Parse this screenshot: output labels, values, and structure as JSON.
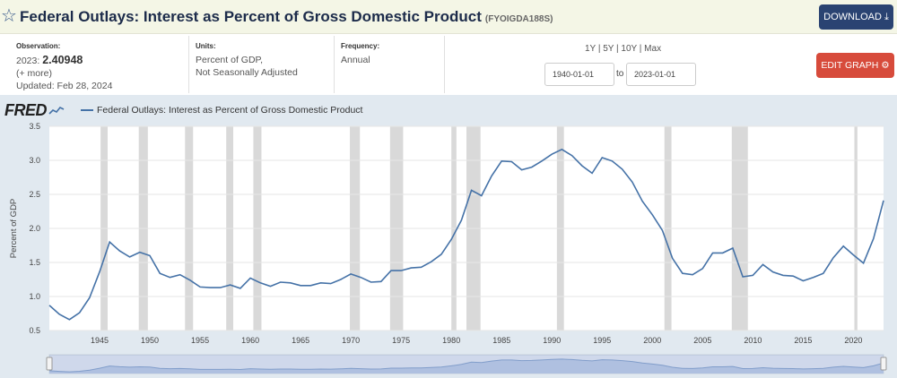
{
  "header": {
    "title": "Federal Outlays: Interest as Percent of Gross Domestic Product",
    "series_id": "(FYOIGDA188S)",
    "download_label": "DOWNLOAD"
  },
  "meta": {
    "observation_label": "Observation:",
    "observation_period": "2023:",
    "observation_value": "2.40948",
    "more_label": "(+ more)",
    "updated": "Updated: Feb 28, 2024",
    "units_label": "Units:",
    "units_line1": "Percent of GDP,",
    "units_line2": "Not Seasonally Adjusted",
    "frequency_label": "Frequency:",
    "frequency_value": "Annual"
  },
  "range": {
    "links": "1Y | 5Y | 10Y | Max",
    "start": "1940-01-01",
    "to_label": "to",
    "end": "2023-01-01",
    "edit_label": "EDIT GRAPH"
  },
  "brand": {
    "logo_text": "FRED"
  },
  "colors": {
    "line": "#4572a7",
    "recession": "#d9d9d9",
    "accent_red": "#d74b3b",
    "accent_navy": "#2a4372"
  },
  "chart_data": {
    "type": "line",
    "title": "",
    "legend": "Federal Outlays: Interest as Percent of Gross Domestic Product",
    "xlabel": "",
    "ylabel": "Percent of GDP",
    "xlim": [
      1940,
      2023
    ],
    "ylim": [
      0.5,
      3.5
    ],
    "yticks": [
      0.5,
      1.0,
      1.5,
      2.0,
      2.5,
      3.0,
      3.5
    ],
    "ytick_labels": [
      "0.5",
      "1.0",
      "1.5",
      "2.0",
      "2.5",
      "3.0",
      "3.5"
    ],
    "xticks": [
      1945,
      1950,
      1955,
      1960,
      1965,
      1970,
      1975,
      1980,
      1985,
      1990,
      1995,
      2000,
      2005,
      2010,
      2015,
      2020
    ],
    "xtick_labels": [
      "1945",
      "1950",
      "1955",
      "1960",
      "1965",
      "1970",
      "1975",
      "1980",
      "1985",
      "1990",
      "1995",
      "2000",
      "2005",
      "2010",
      "2015",
      "2020"
    ],
    "recessions": [
      [
        1945.1,
        1945.8
      ],
      [
        1948.9,
        1949.8
      ],
      [
        1953.5,
        1954.3
      ],
      [
        1957.6,
        1958.3
      ],
      [
        1960.3,
        1961.1
      ],
      [
        1969.9,
        1970.9
      ],
      [
        1973.9,
        1975.2
      ],
      [
        1980.0,
        1980.5
      ],
      [
        1981.5,
        1982.9
      ],
      [
        1990.5,
        1991.2
      ],
      [
        2001.2,
        2001.9
      ],
      [
        2007.9,
        2009.5
      ],
      [
        2020.1,
        2020.4
      ]
    ],
    "series": [
      {
        "name": "Federal Outlays: Interest as Percent of Gross Domestic Product",
        "x": [
          1940,
          1941,
          1942,
          1943,
          1944,
          1945,
          1946,
          1947,
          1948,
          1949,
          1950,
          1951,
          1952,
          1953,
          1954,
          1955,
          1956,
          1957,
          1958,
          1959,
          1960,
          1961,
          1962,
          1963,
          1964,
          1965,
          1966,
          1967,
          1968,
          1969,
          1970,
          1971,
          1972,
          1973,
          1974,
          1975,
          1976,
          1977,
          1978,
          1979,
          1980,
          1981,
          1982,
          1983,
          1984,
          1985,
          1986,
          1987,
          1988,
          1989,
          1990,
          1991,
          1992,
          1993,
          1994,
          1995,
          1996,
          1997,
          1998,
          1999,
          2000,
          2001,
          2002,
          2003,
          2004,
          2005,
          2006,
          2007,
          2008,
          2009,
          2010,
          2011,
          2012,
          2013,
          2014,
          2015,
          2016,
          2017,
          2018,
          2019,
          2020,
          2021,
          2022,
          2023
        ],
        "values": [
          0.87,
          0.74,
          0.66,
          0.76,
          0.98,
          1.36,
          1.8,
          1.67,
          1.58,
          1.65,
          1.6,
          1.34,
          1.28,
          1.32,
          1.24,
          1.14,
          1.13,
          1.13,
          1.17,
          1.12,
          1.27,
          1.2,
          1.15,
          1.21,
          1.2,
          1.16,
          1.16,
          1.2,
          1.19,
          1.25,
          1.33,
          1.28,
          1.21,
          1.22,
          1.38,
          1.38,
          1.42,
          1.43,
          1.51,
          1.62,
          1.84,
          2.12,
          2.56,
          2.48,
          2.77,
          2.99,
          2.98,
          2.86,
          2.9,
          2.99,
          3.09,
          3.16,
          3.07,
          2.92,
          2.81,
          3.04,
          2.99,
          2.87,
          2.68,
          2.4,
          2.2,
          1.97,
          1.56,
          1.34,
          1.32,
          1.41,
          1.64,
          1.64,
          1.71,
          1.29,
          1.31,
          1.47,
          1.36,
          1.31,
          1.3,
          1.23,
          1.28,
          1.34,
          1.57,
          1.74,
          1.61,
          1.49,
          1.85,
          2.41
        ]
      }
    ]
  }
}
